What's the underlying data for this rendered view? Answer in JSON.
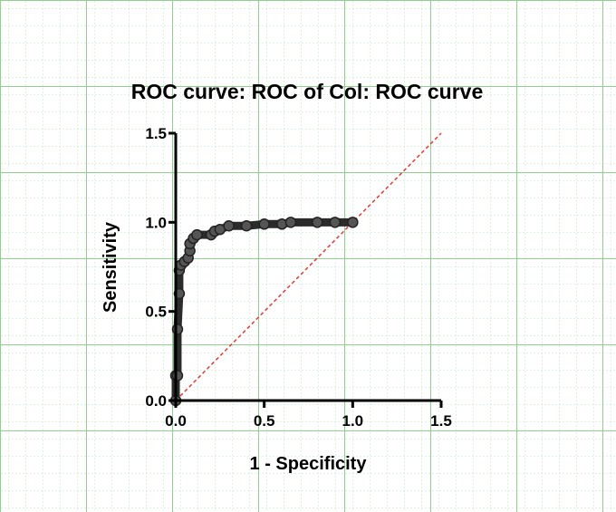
{
  "chart_data": {
    "type": "line",
    "title": "ROC curve: ROC of Col: ROC curve",
    "xlabel": "1 - Specificity",
    "ylabel": "Sensitivity",
    "xlim": [
      0,
      1.5
    ],
    "ylim": [
      0,
      1.5
    ],
    "x_ticks": [
      "0.0",
      "0.5",
      "1.0",
      "1.5"
    ],
    "y_ticks": [
      "0.0",
      "0.5",
      "1.0",
      "1.5"
    ],
    "grid": true,
    "series": [
      {
        "color": "#2b2b2b",
        "style": "solid-thick",
        "x": [
          0.0,
          0.0,
          0.01,
          0.01,
          0.02,
          0.02,
          0.03,
          0.05,
          0.07,
          0.08,
          0.08,
          0.1,
          0.12,
          0.2,
          0.22,
          0.25,
          0.3,
          0.4,
          0.5,
          0.6,
          0.65,
          0.8,
          0.9,
          1.0
        ],
        "y": [
          0.0,
          0.14,
          0.14,
          0.4,
          0.6,
          0.73,
          0.76,
          0.78,
          0.8,
          0.84,
          0.88,
          0.91,
          0.93,
          0.93,
          0.95,
          0.96,
          0.98,
          0.98,
          0.99,
          0.99,
          1.0,
          1.0,
          1.0,
          1.0
        ]
      },
      {
        "color": "#e03a3a",
        "style": "dashed",
        "x": [
          0.0,
          1.5
        ],
        "y": [
          0.0,
          1.5
        ]
      }
    ]
  }
}
